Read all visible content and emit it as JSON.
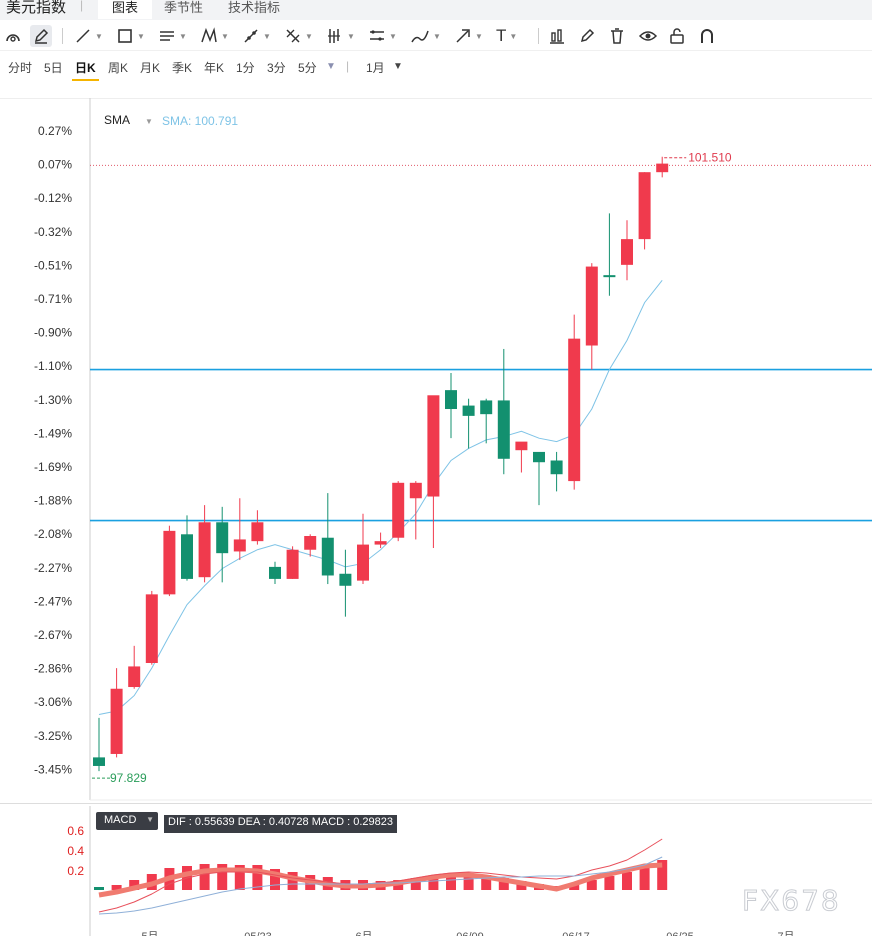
{
  "header": {
    "brand": "美元指数",
    "tabs": [
      {
        "label": "图表",
        "active": true
      },
      {
        "label": "季节性",
        "active": false
      },
      {
        "label": "技术指标",
        "active": false
      }
    ]
  },
  "toolbar": {
    "text_tool": "T"
  },
  "periods": {
    "items": [
      "分时",
      "5日",
      "日K",
      "周K",
      "月K",
      "季K",
      "年K",
      "1分",
      "3分",
      "5分"
    ],
    "active": "日K",
    "range": "1月"
  },
  "indicator": {
    "sma_label": "SMA",
    "sma_value": "SMA: 100.791"
  },
  "macd": {
    "label": "MACD",
    "values": "DIF : 0.55639  DEA : 0.40728  MACD : 0.29823",
    "y_ticks": [
      "0.6",
      "0.4",
      "0.2"
    ]
  },
  "watermark": "FX678",
  "chart_data": {
    "type": "candlestick",
    "y_axis_labels": [
      "0.27%",
      "0.07%",
      "-0.12%",
      "-0.32%",
      "-0.51%",
      "-0.71%",
      "-0.90%",
      "-1.10%",
      "-1.30%",
      "-1.49%",
      "-1.69%",
      "-1.88%",
      "-2.08%",
      "-2.27%",
      "-2.47%",
      "-2.67%",
      "-2.86%",
      "-3.06%",
      "-3.25%",
      "-3.45%"
    ],
    "x_axis_labels": [
      "5月",
      "05/23",
      "6月",
      "06/09",
      "06/17",
      "06/25",
      "7月"
    ],
    "high_label": "101.510",
    "low_label": "97.829",
    "reference_pct": 0.07,
    "horizontal_lines_pct": [
      -1.12,
      -2.0
    ],
    "ohlc_pct": [
      {
        "o": -3.38,
        "h": -3.15,
        "l": -3.46,
        "c": -3.43
      },
      {
        "o": -3.36,
        "h": -2.86,
        "l": -3.38,
        "c": -2.98
      },
      {
        "o": -2.97,
        "h": -2.73,
        "l": -2.98,
        "c": -2.85
      },
      {
        "o": -2.83,
        "h": -2.41,
        "l": -2.84,
        "c": -2.43
      },
      {
        "o": -2.43,
        "h": -2.03,
        "l": -2.44,
        "c": -2.06
      },
      {
        "o": -2.08,
        "h": -1.97,
        "l": -2.35,
        "c": -2.34
      },
      {
        "o": -2.33,
        "h": -1.91,
        "l": -2.36,
        "c": -2.01
      },
      {
        "o": -2.01,
        "h": -1.92,
        "l": -2.36,
        "c": -2.19
      },
      {
        "o": -2.18,
        "h": -1.87,
        "l": -2.23,
        "c": -2.11
      },
      {
        "o": -2.12,
        "h": -1.94,
        "l": -2.14,
        "c": -2.01
      },
      {
        "o": -2.27,
        "h": -2.24,
        "l": -2.37,
        "c": -2.34
      },
      {
        "o": -2.34,
        "h": -2.15,
        "l": -2.34,
        "c": -2.17
      },
      {
        "o": -2.17,
        "h": -2.08,
        "l": -2.21,
        "c": -2.09
      },
      {
        "o": -2.1,
        "h": -1.84,
        "l": -2.37,
        "c": -2.32
      },
      {
        "o": -2.31,
        "h": -2.17,
        "l": -2.56,
        "c": -2.38
      },
      {
        "o": -2.35,
        "h": -1.96,
        "l": -2.37,
        "c": -2.14
      },
      {
        "o": -2.14,
        "h": -2.07,
        "l": -2.16,
        "c": -2.12
      },
      {
        "o": -2.1,
        "h": -1.77,
        "l": -2.12,
        "c": -1.78
      },
      {
        "o": -1.87,
        "h": -1.77,
        "l": -2.11,
        "c": -1.78
      },
      {
        "o": -1.86,
        "h": -1.69,
        "l": -2.16,
        "c": -1.27
      },
      {
        "o": -1.24,
        "h": -1.14,
        "l": -1.52,
        "c": -1.35
      },
      {
        "o": -1.33,
        "h": -1.29,
        "l": -1.58,
        "c": -1.39
      },
      {
        "o": -1.3,
        "h": -1.29,
        "l": -1.55,
        "c": -1.38
      },
      {
        "o": -1.3,
        "h": -1.0,
        "l": -1.73,
        "c": -1.64
      },
      {
        "o": -1.59,
        "h": -1.56,
        "l": -1.72,
        "c": -1.54
      },
      {
        "o": -1.6,
        "h": -1.61,
        "l": -1.91,
        "c": -1.66
      },
      {
        "o": -1.65,
        "h": -1.6,
        "l": -1.83,
        "c": -1.73
      },
      {
        "o": -1.77,
        "h": -0.8,
        "l": -1.82,
        "c": -0.94
      },
      {
        "o": -0.98,
        "h": -0.5,
        "l": -1.12,
        "c": -0.52
      },
      {
        "o": -0.57,
        "h": -0.21,
        "l": -0.69,
        "c": -0.58
      },
      {
        "o": -0.51,
        "h": -0.25,
        "l": -0.6,
        "c": -0.36
      },
      {
        "o": -0.36,
        "h": 0.03,
        "l": -0.42,
        "c": 0.03
      },
      {
        "o": 0.03,
        "h": 0.12,
        "l": 0.0,
        "c": 0.08
      }
    ],
    "sma_pct": [
      -3.13,
      -3.11,
      -3.02,
      -2.86,
      -2.67,
      -2.49,
      -2.38,
      -2.28,
      -2.22,
      -2.17,
      -2.14,
      -2.17,
      -2.2,
      -2.23,
      -2.27,
      -2.25,
      -2.17,
      -2.07,
      -1.96,
      -1.79,
      -1.65,
      -1.58,
      -1.53,
      -1.51,
      -1.48,
      -1.52,
      -1.54,
      -1.5,
      -1.35,
      -1.12,
      -0.95,
      -0.73,
      -0.6
    ],
    "macd_series": {
      "dif": [
        -0.22,
        -0.18,
        -0.12,
        -0.04,
        0.06,
        0.12,
        0.16,
        0.18,
        0.18,
        0.18,
        0.15,
        0.12,
        0.1,
        0.08,
        0.06,
        0.06,
        0.07,
        0.09,
        0.12,
        0.15,
        0.17,
        0.18,
        0.17,
        0.15,
        0.13,
        0.12,
        0.11,
        0.14,
        0.2,
        0.24,
        0.3,
        0.4,
        0.51
      ],
      "dea": [
        -0.24,
        -0.23,
        -0.21,
        -0.18,
        -0.14,
        -0.1,
        -0.06,
        -0.02,
        0.01,
        0.03,
        0.05,
        0.06,
        0.06,
        0.06,
        0.06,
        0.06,
        0.07,
        0.07,
        0.08,
        0.09,
        0.1,
        0.11,
        0.12,
        0.13,
        0.13,
        0.14,
        0.14,
        0.14,
        0.16,
        0.18,
        0.21,
        0.25,
        0.33
      ],
      "macd": [
        0.03,
        0.05,
        0.1,
        0.16,
        0.22,
        0.24,
        0.26,
        0.26,
        0.25,
        0.25,
        0.21,
        0.18,
        0.15,
        0.13,
        0.1,
        0.1,
        0.09,
        0.1,
        0.12,
        0.14,
        0.16,
        0.16,
        0.15,
        0.12,
        0.09,
        0.06,
        0.04,
        0.06,
        0.1,
        0.14,
        0.18,
        0.25,
        0.3
      ],
      "macd_line": [
        -0.05,
        -0.02,
        0.02,
        0.06,
        0.12,
        0.16,
        0.19,
        0.2,
        0.2,
        0.19,
        0.16,
        0.12,
        0.09,
        0.06,
        0.04,
        0.04,
        0.05,
        0.07,
        0.1,
        0.13,
        0.15,
        0.15,
        0.13,
        0.1,
        0.07,
        0.04,
        0.01,
        0.06,
        0.12,
        0.16,
        0.2,
        0.24,
        0.25
      ]
    }
  }
}
